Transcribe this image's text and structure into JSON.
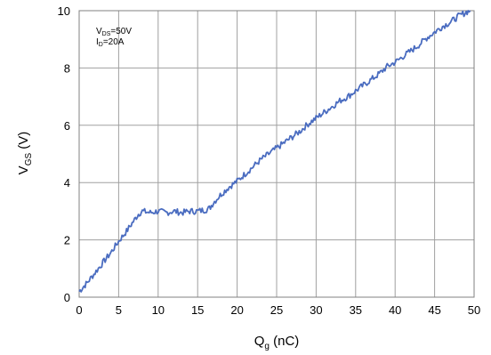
{
  "chart_data": {
    "type": "line",
    "xlabel_main": "Q",
    "xlabel_sub": "g",
    "xlabel_unit": " (nC)",
    "ylabel_main": "V",
    "ylabel_sub": "GS",
    "ylabel_unit": " (V)",
    "xlim": [
      0,
      50
    ],
    "ylim": [
      0,
      10
    ],
    "x_ticks": [
      "0",
      "5",
      "10",
      "15",
      "20",
      "25",
      "30",
      "35",
      "40",
      "45",
      "50"
    ],
    "y_ticks": [
      "0",
      "2",
      "4",
      "6",
      "8",
      "10"
    ],
    "grid": true,
    "annotation": {
      "line1_main": "V",
      "line1_sub": "DS",
      "line1_rest": "=50V",
      "line2_main": "I",
      "line2_sub": "D",
      "line2_rest": "=20A"
    },
    "series": [
      {
        "color": "#4a6cc0",
        "x": [
          0,
          0.5,
          1,
          2,
          3,
          4,
          5,
          6,
          7,
          7.5,
          8,
          9,
          10,
          11,
          12,
          13,
          14,
          15,
          16,
          16.5,
          17,
          18,
          19,
          20,
          21,
          22,
          23,
          24,
          25,
          26,
          27,
          28,
          29,
          30,
          31,
          32,
          33,
          34,
          35,
          36,
          37,
          38,
          39,
          40,
          41,
          42,
          43,
          44,
          45,
          46,
          47,
          48,
          49,
          49.5
        ],
        "y": [
          0.2,
          0.35,
          0.5,
          0.85,
          1.2,
          1.55,
          1.95,
          2.3,
          2.7,
          2.9,
          3.0,
          2.95,
          3.0,
          2.95,
          3.0,
          2.95,
          3.0,
          3.0,
          3.05,
          3.1,
          3.3,
          3.6,
          3.85,
          4.05,
          4.3,
          4.55,
          4.8,
          5.0,
          5.2,
          5.4,
          5.6,
          5.8,
          6.05,
          6.25,
          6.45,
          6.65,
          6.85,
          7.0,
          7.2,
          7.4,
          7.6,
          7.8,
          8.05,
          8.2,
          8.4,
          8.6,
          8.8,
          9.05,
          9.25,
          9.45,
          9.6,
          9.8,
          9.95,
          10.0
        ]
      }
    ]
  }
}
